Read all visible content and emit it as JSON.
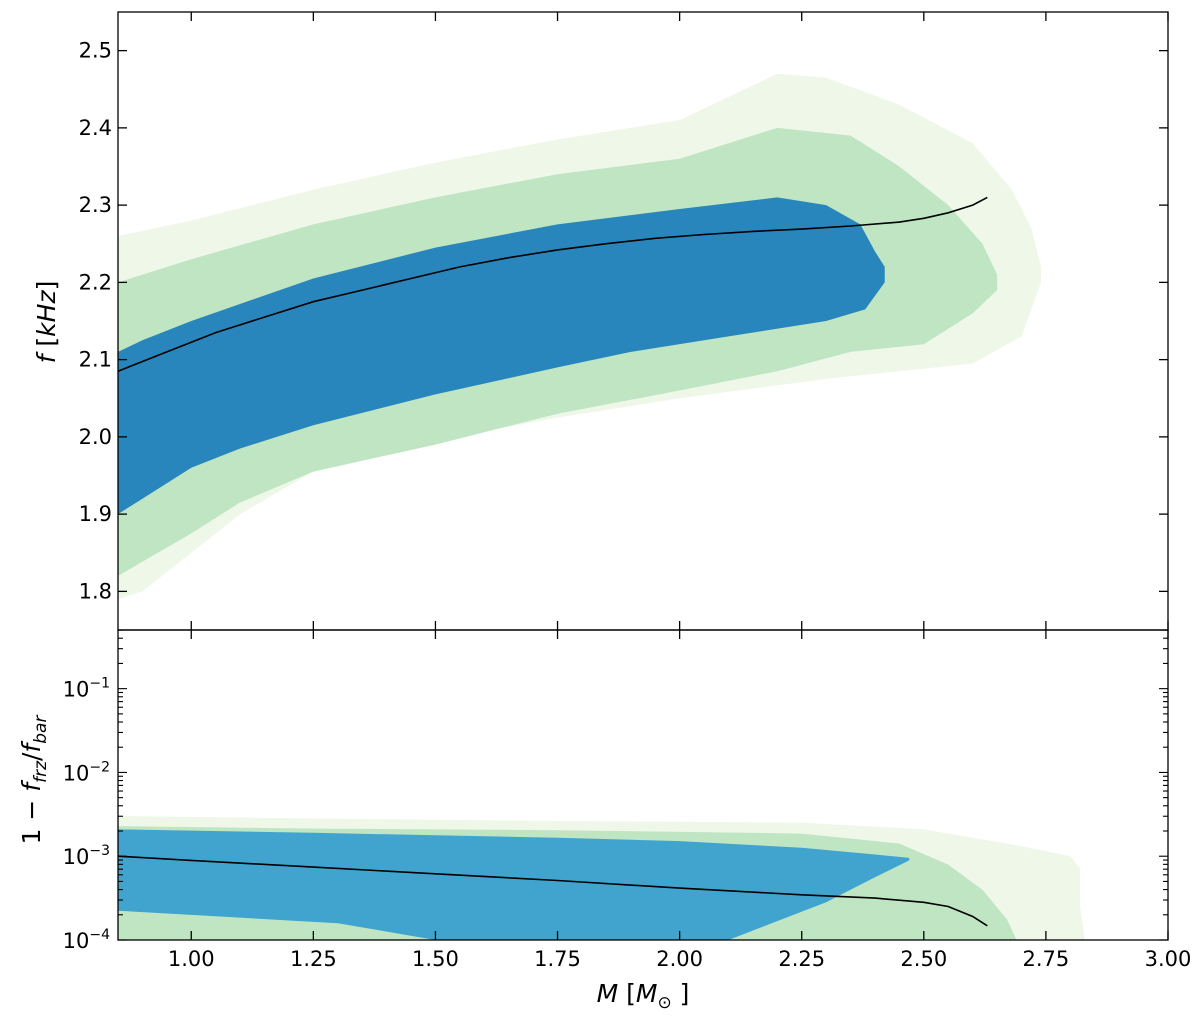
{
  "chart_data": {
    "type": "area",
    "description_free": true,
    "colors": {
      "outer": "#eef7e8",
      "middle": "#bfe5c3",
      "inner_top": "#2886bc",
      "inner_bottom": "#41a4ce",
      "line": "#000000"
    },
    "x": {
      "label_var": "M",
      "label_unit": "M",
      "label_unit_sub": "⊙",
      "lim": [
        0.85,
        3.0
      ],
      "ticks": [
        1.0,
        1.25,
        1.5,
        1.75,
        2.0,
        2.25,
        2.5,
        2.75,
        3.0
      ],
      "tick_labels": [
        "1.00",
        "1.25",
        "1.50",
        "1.75",
        "2.00",
        "2.25",
        "2.50",
        "2.75",
        "3.00"
      ]
    },
    "panels": [
      {
        "name": "top",
        "ylabel_var": "f",
        "ylabel_unit": "kHz",
        "ylim": [
          1.75,
          2.55
        ],
        "yscale": "linear",
        "yticks": [
          1.8,
          1.9,
          2.0,
          2.1,
          2.2,
          2.3,
          2.4,
          2.5
        ],
        "ytick_labels": [
          "1.8",
          "1.9",
          "2.0",
          "2.1",
          "2.2",
          "2.3",
          "2.4",
          "2.5"
        ],
        "bands": [
          {
            "name": "outer",
            "upper": [
              [
                0.85,
                2.26
              ],
              [
                1.0,
                2.28
              ],
              [
                1.25,
                2.32
              ],
              [
                1.5,
                2.355
              ],
              [
                1.75,
                2.385
              ],
              [
                2.0,
                2.41
              ],
              [
                2.2,
                2.47
              ],
              [
                2.3,
                2.465
              ],
              [
                2.45,
                2.43
              ],
              [
                2.6,
                2.38
              ],
              [
                2.68,
                2.32
              ],
              [
                2.72,
                2.27
              ],
              [
                2.74,
                2.22
              ]
            ],
            "lower": [
              [
                2.74,
                2.2
              ],
              [
                2.7,
                2.13
              ],
              [
                2.6,
                2.095
              ],
              [
                2.45,
                2.085
              ],
              [
                2.3,
                2.075
              ],
              [
                2.0,
                2.05
              ],
              [
                1.75,
                2.025
              ],
              [
                1.5,
                1.995
              ],
              [
                1.25,
                1.955
              ],
              [
                1.1,
                1.9
              ],
              [
                1.0,
                1.85
              ],
              [
                0.9,
                1.8
              ],
              [
                0.85,
                1.79
              ]
            ]
          },
          {
            "name": "middle",
            "upper": [
              [
                0.85,
                2.2
              ],
              [
                1.0,
                2.23
              ],
              [
                1.25,
                2.275
              ],
              [
                1.5,
                2.31
              ],
              [
                1.75,
                2.34
              ],
              [
                2.0,
                2.36
              ],
              [
                2.2,
                2.4
              ],
              [
                2.35,
                2.39
              ],
              [
                2.45,
                2.35
              ],
              [
                2.55,
                2.3
              ],
              [
                2.62,
                2.25
              ],
              [
                2.65,
                2.21
              ]
            ],
            "lower": [
              [
                2.65,
                2.19
              ],
              [
                2.6,
                2.16
              ],
              [
                2.5,
                2.12
              ],
              [
                2.35,
                2.11
              ],
              [
                2.2,
                2.085
              ],
              [
                2.0,
                2.06
              ],
              [
                1.75,
                2.03
              ],
              [
                1.5,
                1.99
              ],
              [
                1.25,
                1.955
              ],
              [
                1.1,
                1.915
              ],
              [
                1.0,
                1.875
              ],
              [
                0.85,
                1.82
              ]
            ]
          },
          {
            "name": "inner",
            "upper": [
              [
                0.85,
                2.11
              ],
              [
                0.9,
                2.125
              ],
              [
                1.0,
                2.15
              ],
              [
                1.25,
                2.205
              ],
              [
                1.5,
                2.245
              ],
              [
                1.75,
                2.275
              ],
              [
                2.0,
                2.295
              ],
              [
                2.2,
                2.31
              ],
              [
                2.3,
                2.3
              ],
              [
                2.37,
                2.275
              ],
              [
                2.4,
                2.24
              ],
              [
                2.42,
                2.22
              ]
            ],
            "lower": [
              [
                2.42,
                2.2
              ],
              [
                2.38,
                2.165
              ],
              [
                2.3,
                2.15
              ],
              [
                2.1,
                2.13
              ],
              [
                1.9,
                2.11
              ],
              [
                1.75,
                2.09
              ],
              [
                1.5,
                2.055
              ],
              [
                1.25,
                2.015
              ],
              [
                1.1,
                1.985
              ],
              [
                1.0,
                1.96
              ],
              [
                0.9,
                1.92
              ],
              [
                0.85,
                1.9
              ]
            ]
          }
        ],
        "line": {
          "x": [
            0.85,
            0.95,
            1.05,
            1.15,
            1.25,
            1.35,
            1.45,
            1.55,
            1.65,
            1.75,
            1.85,
            1.95,
            2.05,
            2.15,
            2.25,
            2.35,
            2.45,
            2.5,
            2.55,
            2.6,
            2.63
          ],
          "y": [
            2.085,
            2.11,
            2.135,
            2.155,
            2.175,
            2.19,
            2.205,
            2.22,
            2.232,
            2.242,
            2.25,
            2.257,
            2.262,
            2.266,
            2.269,
            2.273,
            2.278,
            2.283,
            2.29,
            2.3,
            2.31
          ]
        }
      },
      {
        "name": "bottom",
        "ylabel_parts": [
          "1 − ",
          "f",
          "frz",
          "/",
          "f",
          "bar"
        ],
        "ylim_log10": [
          -4,
          -0.3
        ],
        "yscale": "log",
        "yticks_log10": [
          -4,
          -3,
          -2,
          -1
        ],
        "ytick_labels": [
          [
            "10",
            "−4"
          ],
          [
            "10",
            "−3"
          ],
          [
            "10",
            "−2"
          ],
          [
            "10",
            "−1"
          ]
        ],
        "bands": [
          {
            "name": "outer",
            "upper": [
              [
                0.85,
                -2.52
              ],
              [
                1.25,
                -2.55
              ],
              [
                1.75,
                -2.58
              ],
              [
                2.25,
                -2.6
              ],
              [
                2.5,
                -2.68
              ],
              [
                2.6,
                -2.78
              ],
              [
                2.7,
                -2.88
              ],
              [
                2.8,
                -3.0
              ],
              [
                2.82,
                -3.15
              ]
            ],
            "lower": [
              [
                2.82,
                -3.6
              ],
              [
                2.83,
                -4.0
              ],
              [
                0.85,
                -4.0
              ]
            ]
          },
          {
            "name": "middle",
            "upper": [
              [
                0.85,
                -2.64
              ],
              [
                1.25,
                -2.67
              ],
              [
                1.75,
                -2.69
              ],
              [
                2.25,
                -2.73
              ],
              [
                2.45,
                -2.85
              ],
              [
                2.55,
                -3.1
              ],
              [
                2.62,
                -3.4
              ],
              [
                2.67,
                -3.75
              ],
              [
                2.69,
                -4.0
              ]
            ],
            "lower": [
              [
                0.85,
                -4.0
              ],
              [
                0.85,
                -3.62
              ]
            ]
          },
          {
            "name": "inner",
            "upper": [
              [
                0.85,
                -2.68
              ],
              [
                1.25,
                -2.72
              ],
              [
                1.75,
                -2.78
              ],
              [
                2.0,
                -2.82
              ],
              [
                2.25,
                -2.9
              ],
              [
                2.4,
                -2.98
              ],
              [
                2.47,
                -3.02
              ]
            ],
            "lower": [
              [
                2.47,
                -3.05
              ],
              [
                2.4,
                -3.25
              ],
              [
                2.3,
                -3.55
              ],
              [
                2.18,
                -3.82
              ],
              [
                2.1,
                -4.0
              ],
              [
                1.5,
                -4.0
              ],
              [
                1.3,
                -3.8
              ],
              [
                1.0,
                -3.7
              ],
              [
                0.85,
                -3.65
              ]
            ]
          }
        ],
        "line": {
          "x": [
            0.85,
            1.0,
            1.25,
            1.5,
            1.75,
            2.0,
            2.25,
            2.4,
            2.5,
            2.55,
            2.6,
            2.63
          ],
          "y": [
            -3.0,
            -3.05,
            -3.13,
            -3.21,
            -3.29,
            -3.38,
            -3.46,
            -3.5,
            -3.55,
            -3.6,
            -3.72,
            -3.83
          ]
        }
      }
    ]
  }
}
